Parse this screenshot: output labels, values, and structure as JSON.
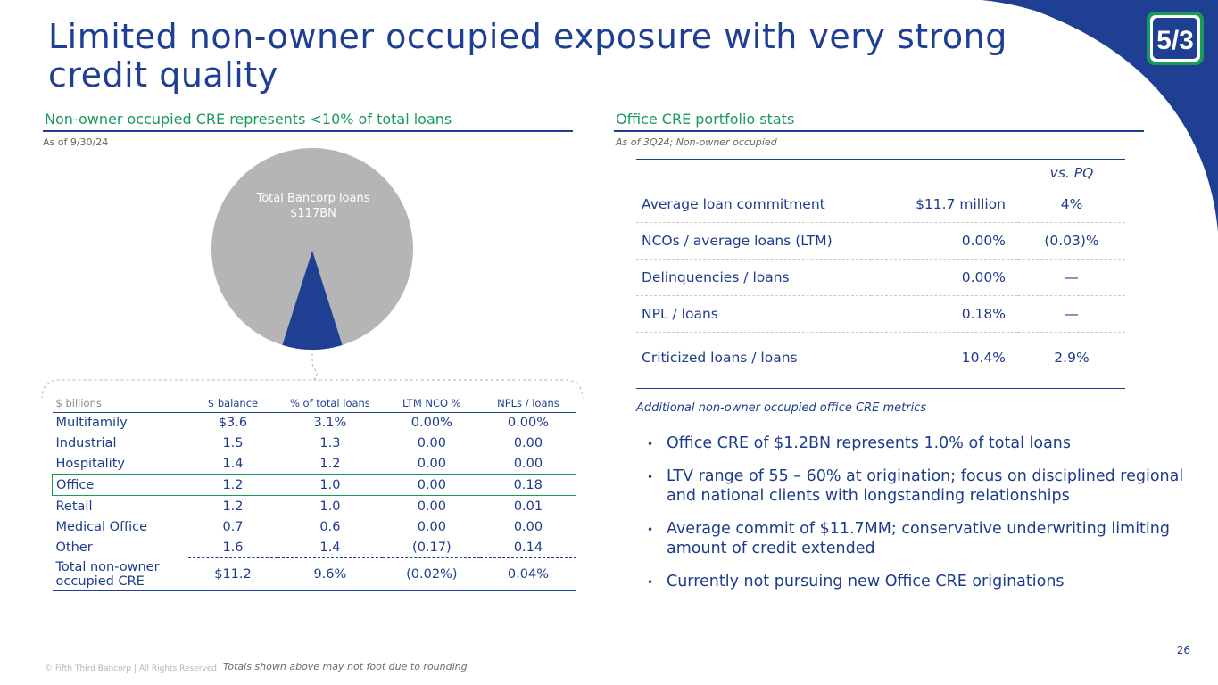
{
  "title": "Limited non-owner occupied exposure with very strong credit quality",
  "left": {
    "heading": "Non-owner occupied CRE represents <10% of total loans",
    "as_of": "As of 9/30/24",
    "pie": {
      "label_line1": "Total Bancorp loans",
      "label_line2": "$117BN",
      "total_color": "#b5b5b5",
      "slice_color": "#1f3f93",
      "slice_share_percent": 9.6
    },
    "table": {
      "headers": [
        "$ billions",
        "$ balance",
        "% of total loans",
        "LTM NCO %",
        "NPLs / loans"
      ],
      "rows": [
        {
          "name": "Multifamily",
          "balance": "$3.6",
          "pct": "3.1%",
          "nco": "0.00%",
          "npl": "0.00%"
        },
        {
          "name": "Industrial",
          "balance": "1.5",
          "pct": "1.3",
          "nco": "0.00",
          "npl": "0.00"
        },
        {
          "name": "Hospitality",
          "balance": "1.4",
          "pct": "1.2",
          "nco": "0.00",
          "npl": "0.00"
        },
        {
          "name": "Office",
          "balance": "1.2",
          "pct": "1.0",
          "nco": "0.00",
          "npl": "0.18"
        },
        {
          "name": "Retail",
          "balance": "1.2",
          "pct": "1.0",
          "nco": "0.00",
          "npl": "0.01"
        },
        {
          "name": "Medical Office",
          "balance": "0.7",
          "pct": "0.6",
          "nco": "0.00",
          "npl": "0.00"
        },
        {
          "name": "Other",
          "balance": "1.6",
          "pct": "1.4",
          "nco": "(0.17)",
          "npl": "0.14"
        }
      ],
      "total": {
        "name_line1": "Total non-owner",
        "name_line2": "occupied CRE",
        "balance": "$11.2",
        "pct": "9.6%",
        "nco": "(0.02%)",
        "npl": "0.04%"
      }
    }
  },
  "right": {
    "heading": "Office CRE portfolio stats",
    "as_of": "As of 3Q24; Non-owner occupied",
    "stats_header": "vs. PQ",
    "stats": [
      {
        "metric": "Average loan commitment",
        "value": "$11.7 million",
        "vs_pq": "4%"
      },
      {
        "metric": "NCOs / average loans (LTM)",
        "value": "0.00%",
        "vs_pq": "(0.03)%"
      },
      {
        "metric": "Delinquencies / loans",
        "value": "0.00%",
        "vs_pq": "—"
      },
      {
        "metric": "NPL / loans",
        "value": "0.18%",
        "vs_pq": "—"
      },
      {
        "metric": "Criticized loans / loans",
        "value": "10.4%",
        "vs_pq": "2.9%"
      }
    ],
    "additional_label": "Additional non-owner occupied office CRE metrics",
    "bullets": [
      "Office CRE of $1.2BN represents 1.0% of total loans",
      "LTV range of 55 – 60% at origination; focus on disciplined regional and national clients with longstanding relationships",
      "Average commit of $11.7MM; conservative underwriting limiting amount of credit extended",
      "Currently not pursuing new Office CRE originations"
    ]
  },
  "footer": {
    "copyright": "© Fifth Third Bancorp | All Rights Reserved",
    "note": "Totals shown above may not foot due to rounding",
    "page_number": "26"
  },
  "colors": {
    "brand_blue": "#1f3f93",
    "accent_green": "#1a9a5a",
    "logo_green": "#1a9a5a"
  }
}
